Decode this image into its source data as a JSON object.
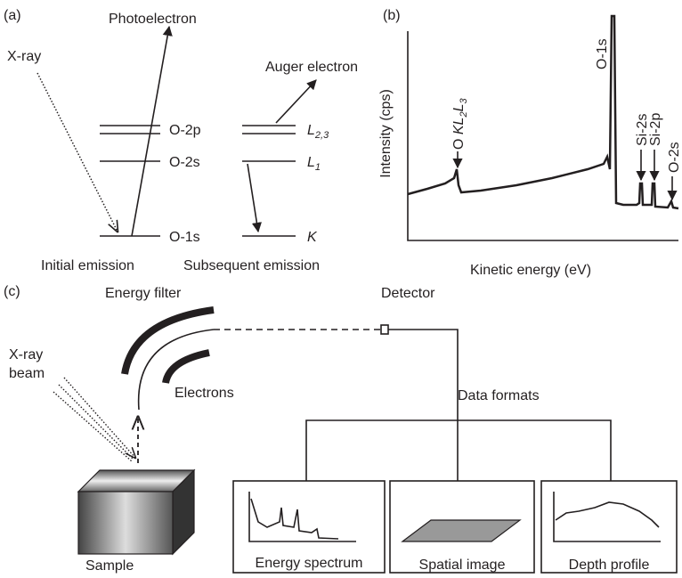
{
  "panel_a": {
    "label": "(a)",
    "photoelectron": "Photoelectron",
    "xray": "X-ray",
    "auger_electron": "Auger electron",
    "levels": [
      "O-2p",
      "O-2s",
      "O-1s"
    ],
    "auger_levels": [
      {
        "main": "L",
        "sub": "2,3"
      },
      {
        "main": "L",
        "sub": "1"
      },
      {
        "main": "K"
      }
    ],
    "initial_emission": "Initial emission",
    "subsequent_emission": "Subsequent emission"
  },
  "panel_b": {
    "label": "(b)",
    "y_axis": "Intensity (cps)",
    "x_axis": "Kinetic energy (eV)",
    "auger_peak": [
      "O ",
      "KL",
      "2",
      "L",
      "3"
    ],
    "peaks": [
      "O-1s",
      "Si-2s",
      "Si-2p",
      "O-2s"
    ]
  },
  "panel_c": {
    "label": "(c)",
    "energy_filter": "Energy filter",
    "detector": "Detector",
    "xray_beam": [
      "X-ray",
      "beam"
    ],
    "electrons": "Electrons",
    "data_formats": "Data formats",
    "sample": "Sample",
    "outputs": [
      "Energy spectrum",
      "Spatial image",
      "Depth profile"
    ]
  }
}
